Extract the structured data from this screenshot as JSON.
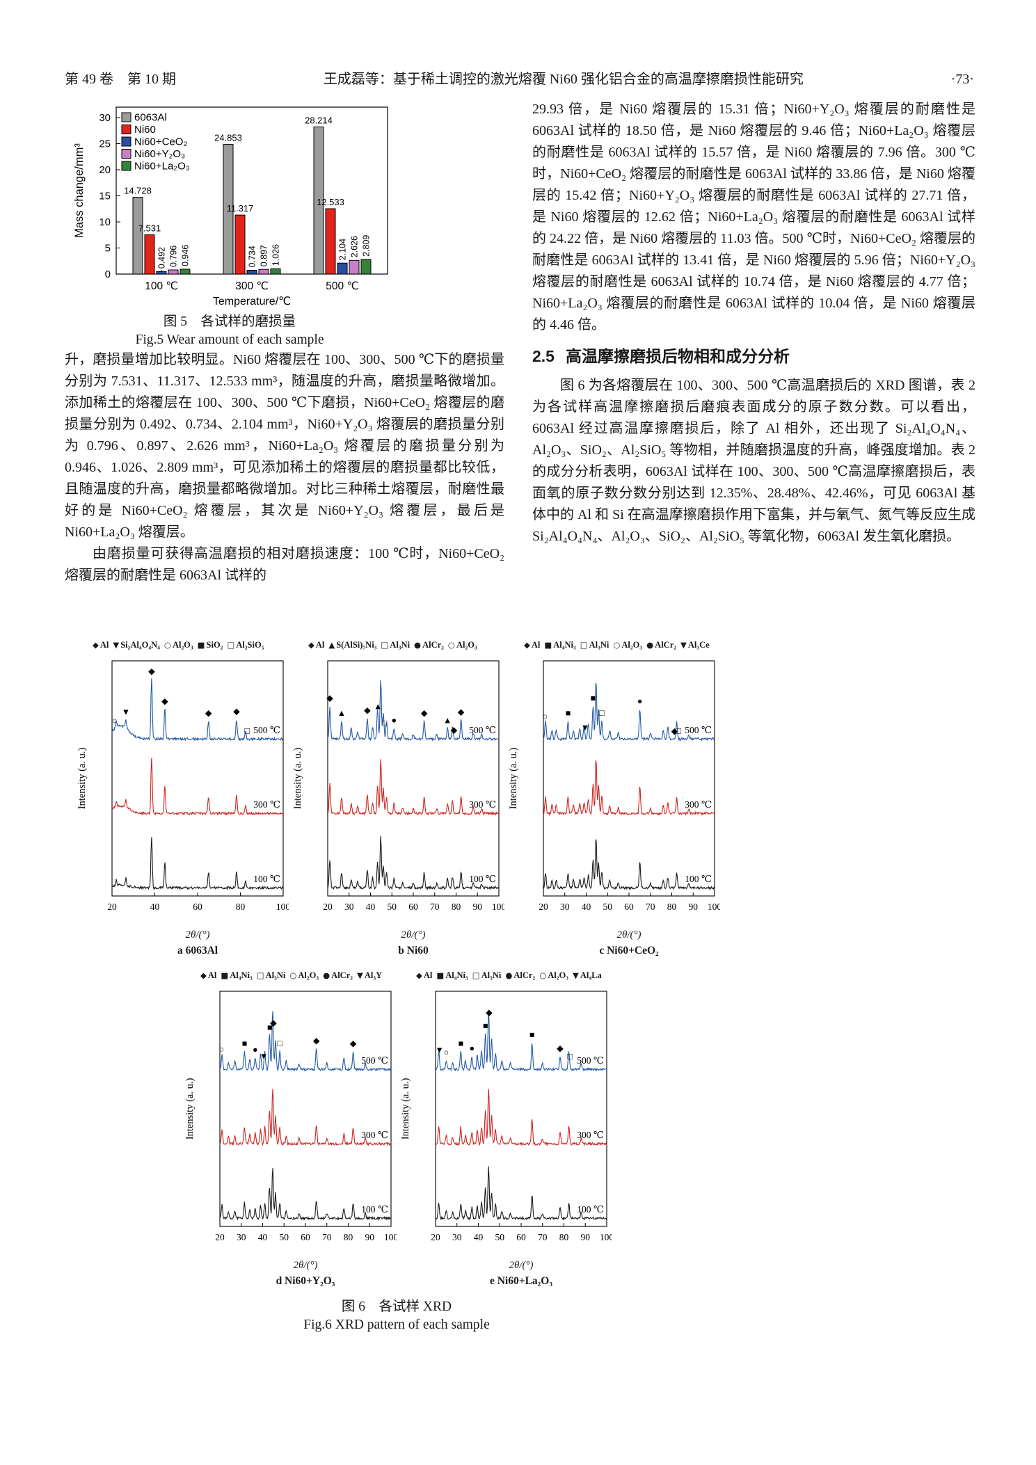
{
  "page": {
    "header_left": "第 49 卷　第 10 期",
    "header_title": "王成磊等：基于稀土调控的激光熔覆 Ni60 强化铝合金的高温摩擦磨损性能研究",
    "header_page": "·73·"
  },
  "fig5": {
    "ylabel": "Mass change/mm³",
    "xlabel": "Temperature/℃",
    "yticks": [
      0,
      5,
      10,
      15,
      20,
      25,
      30
    ],
    "groups": [
      "100 ℃",
      "300 ℃",
      "500 ℃"
    ],
    "series": [
      {
        "name": "6063Al",
        "color": "#9b9b9b",
        "values": [
          14.728,
          24.853,
          28.214
        ],
        "rotated": false
      },
      {
        "name": "Ni60",
        "color": "#e2231a",
        "values": [
          7.531,
          11.317,
          12.533
        ],
        "rotated": false
      },
      {
        "name": "Ni60+CeO₂",
        "color": "#2b4ea2",
        "values": [
          0.492,
          0.734,
          2.104
        ],
        "rotated": true
      },
      {
        "name": "Ni60+Y₂O₃",
        "color": "#c87fc8",
        "values": [
          0.796,
          0.897,
          2.626
        ],
        "rotated": true
      },
      {
        "name": "Ni60+La₂O₃",
        "color": "#35823a",
        "values": [
          0.946,
          1.026,
          2.809
        ],
        "rotated": true
      }
    ],
    "caption_zh": "图 5　各试样的磨损量",
    "caption_en": "Fig.5 Wear amount of each sample"
  },
  "left_column": {
    "paragraphs": [
      "升，磨损量增加比较明显。Ni60 熔覆层在 100、300、500 ℃下的磨损量分别为 7.531、11.317、12.533 mm³，随温度的升高，磨损量略微增加。添加稀土的熔覆层在 100、300、500 ℃下磨损，Ni60+CeO₂ 熔覆层的磨损量分别为 0.492、0.734、2.104 mm³，Ni60+Y₂O₃ 熔覆层的磨损量分别为 0.796、0.897、2.626 mm³，Ni60+La₂O₃ 熔覆层的磨损量分别为 0.946、1.026、2.809 mm³，可见添加稀土的熔覆层的磨损量都比较低，且随温度的升高，磨损量都略微增加。对比三种稀土熔覆层，耐磨性最好的是 Ni60+CeO₂ 熔覆层，其次是 Ni60+Y₂O₃ 熔覆层，最后是 Ni60+La₂O₃ 熔覆层。",
      "由磨损量可获得高温磨损的相对磨损速度：100 ℃时，Ni60+CeO₂ 熔覆层的耐磨性是 6063Al 试样的"
    ]
  },
  "right_column": {
    "paragraph1": "29.93 倍，是 Ni60 熔覆层的 15.31 倍；Ni60+Y₂O₃ 熔覆层的耐磨性是 6063Al 试样的 18.50 倍，是 Ni60 熔覆层的 9.46 倍；Ni60+La₂O₃ 熔覆层的耐磨性是 6063Al 试样的 15.57 倍，是 Ni60 熔覆层的 7.96 倍。300 ℃时，Ni60+CeO₂ 熔覆层的耐磨性是 6063Al 试样的 33.86 倍，是 Ni60 熔覆层的 15.42 倍；Ni60+Y₂O₃ 熔覆层的耐磨性是 6063Al 试样的 27.71 倍，是 Ni60 熔覆层的 12.62 倍；Ni60+La₂O₃ 熔覆层的耐磨性是 6063Al 试样的 24.22 倍，是 Ni60 熔覆层的 11.03 倍。500 ℃时，Ni60+CeO₂ 熔覆层的耐磨性是 6063Al 试样的 13.41 倍，是 Ni60 熔覆层的 5.96 倍；Ni60+Y₂O₃ 熔覆层的耐磨性是 6063Al 试样的 10.74 倍，是 Ni60 熔覆层的 4.77 倍；Ni60+La₂O₃ 熔覆层的耐磨性是 6063Al 试样的 10.04 倍，是 Ni60 熔覆层的 4.46 倍。",
    "section": {
      "number": "2.5",
      "title": "高温摩擦磨损后物相和成分分析"
    },
    "paragraph2": "图 6 为各熔覆层在 100、300、500 ℃高温磨损后的 XRD 图谱，表 2 为各试样高温摩擦磨损后磨痕表面成分的原子数分数。可以看出，6063Al 经过高温摩擦磨损后，除了 Al 相外，还出现了 Si₂Al₄O₄N₄、Al₂O₃、SiO₂、Al₂SiO₅ 等物相，并随磨损温度的升高，峰强度增加。表 2 的成分分析表明，6063Al 试样在 100、300、500 ℃高温摩擦磨损后，表面氧的原子数分数分别达到 12.35%、28.48%、42.46%，可见 6063Al 基体中的 Al 和 Si 在高温摩擦磨损作用下富集，并与氧气、氮气等反应生成 Si₂Al₄O₄N₄、Al₂O₃、SiO₂、Al₂SiO₅ 等氧化物，6063Al 发生氧化磨损。"
  },
  "fig6": {
    "ylabel": "Intensity (a. u.)",
    "xlabel": "2θ/(°)",
    "curve_labels": [
      "100 ℃",
      "300 ℃",
      "500 ℃"
    ],
    "curve_colors": [
      "#1a1a1a",
      "#cf2420",
      "#2458a8"
    ],
    "caption_zh": "图 6　各试样 XRD",
    "caption_en": "Fig.6 XRD pattern of each sample",
    "subplots": [
      {
        "key": "a",
        "label": "a  6063Al",
        "legend": [
          [
            "◆",
            "Al"
          ],
          [
            "▼",
            "Si₂Al₄O₄N₄"
          ],
          [
            "○",
            "Al₂O₃"
          ],
          [
            "■",
            "SiO₂"
          ],
          [
            "□",
            "Al₂SiO₅"
          ]
        ],
        "xticks": [
          20,
          40,
          60,
          80,
          100
        ],
        "peaks": [
          [
            22,
            0.1
          ],
          [
            26.5,
            0.14
          ],
          [
            38.5,
            1.0
          ],
          [
            44.7,
            0.5
          ],
          [
            65.1,
            0.3
          ],
          [
            78.2,
            0.33
          ],
          [
            82.4,
            0.14
          ]
        ],
        "hump": [
          24,
          5.5,
          0.22
        ],
        "markers": [
          [
            "○",
            21.2
          ],
          [
            "▼",
            26.5
          ],
          [
            "◆",
            38.5
          ],
          [
            "◆",
            44.7
          ],
          [
            "◆",
            65.1
          ],
          [
            "◆",
            78.2
          ],
          [
            "□",
            83.2
          ]
        ]
      },
      {
        "key": "b",
        "label": "b  Ni60",
        "legend": [
          [
            "◆",
            "Al"
          ],
          [
            "▲",
            "S(AlSi)₇Ni₃"
          ],
          [
            "□",
            "Al₃Ni"
          ],
          [
            "●",
            "AlCr₂"
          ],
          [
            "○",
            "Al₂O₃"
          ]
        ],
        "xticks": [
          20,
          30,
          40,
          50,
          60,
          70,
          80,
          90,
          100
        ],
        "peaks": [
          [
            21,
            0.55
          ],
          [
            26.5,
            0.3
          ],
          [
            31,
            0.18
          ],
          [
            34,
            0.12
          ],
          [
            38.5,
            0.35
          ],
          [
            41,
            0.2
          ],
          [
            43.3,
            0.5
          ],
          [
            44.8,
            1.0
          ],
          [
            46,
            0.45
          ],
          [
            47.5,
            0.3
          ],
          [
            51,
            0.18
          ],
          [
            55,
            0.1
          ],
          [
            60,
            0.08
          ],
          [
            65.1,
            0.3
          ],
          [
            71,
            0.08
          ],
          [
            76,
            0.18
          ],
          [
            78.3,
            0.22
          ],
          [
            82.3,
            0.32
          ],
          [
            88,
            0.1
          ],
          [
            92,
            0.08
          ]
        ],
        "markers": [
          [
            "◆",
            21
          ],
          [
            "▲",
            26.5
          ],
          [
            "◆",
            38.5
          ],
          [
            "▲",
            43.5
          ],
          [
            "□",
            46.5
          ],
          [
            "●",
            51
          ],
          [
            "◆",
            65.1
          ],
          [
            "▲",
            76
          ],
          [
            "◆",
            79
          ],
          [
            "◆",
            82.3
          ]
        ]
      },
      {
        "key": "c",
        "label": "c  Ni60+CeO₂",
        "legend": [
          [
            "◆",
            "Al"
          ],
          [
            "■",
            "Al₄Ni₃"
          ],
          [
            "□",
            "Al₃Ni"
          ],
          [
            "○",
            "Al₂O₃"
          ],
          [
            "●",
            "AlCr₂"
          ],
          [
            "▼",
            "Al₃Ce"
          ]
        ],
        "xticks": [
          20,
          30,
          40,
          50,
          60,
          70,
          80,
          90,
          100
        ],
        "peaks": [
          [
            21,
            0.3
          ],
          [
            24,
            0.15
          ],
          [
            26,
            0.15
          ],
          [
            31.5,
            0.3
          ],
          [
            34,
            0.15
          ],
          [
            37,
            0.18
          ],
          [
            39,
            0.2
          ],
          [
            41,
            0.25
          ],
          [
            43.2,
            0.55
          ],
          [
            44.6,
            1.0
          ],
          [
            45.8,
            0.5
          ],
          [
            47.3,
            0.3
          ],
          [
            51,
            0.15
          ],
          [
            55,
            0.1
          ],
          [
            65.1,
            0.5
          ],
          [
            70,
            0.1
          ],
          [
            76,
            0.15
          ],
          [
            78.2,
            0.2
          ],
          [
            82.3,
            0.28
          ],
          [
            88,
            0.08
          ]
        ],
        "markers": [
          [
            "○",
            20.8
          ],
          [
            "■",
            31.5
          ],
          [
            "▼",
            39.5
          ],
          [
            "■",
            43.2
          ],
          [
            "□",
            47.3
          ],
          [
            "●",
            65.1
          ],
          [
            "◆",
            81.3
          ],
          [
            "□",
            83.2
          ]
        ]
      },
      {
        "key": "d",
        "label": "d  Ni60+Y₂O₃",
        "legend": [
          [
            "◆",
            "Al"
          ],
          [
            "■",
            "Al₄Ni₃"
          ],
          [
            "□",
            "Al₃Ni"
          ],
          [
            "○",
            "Al₂O₃"
          ],
          [
            "●",
            "AlCr₂"
          ],
          [
            "▼",
            "Al₃Y"
          ]
        ],
        "xticks": [
          20,
          30,
          40,
          50,
          60,
          70,
          80,
          90,
          100
        ],
        "peaks": [
          [
            21,
            0.25
          ],
          [
            24,
            0.12
          ],
          [
            27,
            0.15
          ],
          [
            31.5,
            0.3
          ],
          [
            34,
            0.18
          ],
          [
            36.5,
            0.2
          ],
          [
            39,
            0.25
          ],
          [
            41,
            0.3
          ],
          [
            43.2,
            0.6
          ],
          [
            44.7,
            1.0
          ],
          [
            46,
            0.5
          ],
          [
            48,
            0.3
          ],
          [
            51,
            0.15
          ],
          [
            57,
            0.1
          ],
          [
            65.1,
            0.35
          ],
          [
            70,
            0.1
          ],
          [
            78,
            0.2
          ],
          [
            82.3,
            0.3
          ],
          [
            88,
            0.1
          ]
        ],
        "markers": [
          [
            "○",
            20.8
          ],
          [
            "■",
            31.5
          ],
          [
            "●",
            36.5
          ],
          [
            "▼",
            40.5
          ],
          [
            "■",
            43.3
          ],
          [
            "◆",
            45
          ],
          [
            "□",
            48
          ],
          [
            "◆",
            65.1
          ],
          [
            "◆",
            82.3
          ]
        ]
      },
      {
        "key": "e",
        "label": "e  Ni60+La₂O₃",
        "legend": [
          [
            "◆",
            "Al"
          ],
          [
            "■",
            "Al₄Ni₃"
          ],
          [
            "□",
            "Al₃Ni"
          ],
          [
            "●",
            "AlCr₂"
          ],
          [
            "○",
            "Al₂O₃"
          ],
          [
            "▼",
            "Al₄La"
          ]
        ],
        "xticks": [
          20,
          30,
          40,
          50,
          60,
          70,
          80,
          90,
          100
        ],
        "peaks": [
          [
            21.5,
            0.3
          ],
          [
            25,
            0.15
          ],
          [
            28,
            0.12
          ],
          [
            31.8,
            0.3
          ],
          [
            34,
            0.15
          ],
          [
            37,
            0.22
          ],
          [
            39.5,
            0.25
          ],
          [
            41.5,
            0.3
          ],
          [
            43.3,
            0.6
          ],
          [
            44.8,
            1.0
          ],
          [
            46.2,
            0.5
          ],
          [
            48,
            0.28
          ],
          [
            51,
            0.15
          ],
          [
            55,
            0.1
          ],
          [
            65.1,
            0.45
          ],
          [
            70,
            0.1
          ],
          [
            78.2,
            0.22
          ],
          [
            82.3,
            0.3
          ],
          [
            88,
            0.1
          ]
        ],
        "markers": [
          [
            "▼",
            21.8
          ],
          [
            "○",
            25
          ],
          [
            "■",
            31.8
          ],
          [
            "●",
            37
          ],
          [
            "■",
            43.3
          ],
          [
            "◆",
            45
          ],
          [
            "■",
            65.1
          ],
          [
            "◆",
            78.2
          ],
          [
            "□",
            82.8
          ]
        ]
      }
    ]
  },
  "chart_data": [
    {
      "type": "bar",
      "title": "图5 各试样的磨损量 / Fig.5 Wear amount of each sample",
      "categories": [
        "100 ℃",
        "300 ℃",
        "500 ℃"
      ],
      "series": [
        {
          "name": "6063Al",
          "values": [
            14.728,
            24.853,
            28.214
          ]
        },
        {
          "name": "Ni60",
          "values": [
            7.531,
            11.317,
            12.533
          ]
        },
        {
          "name": "Ni60+CeO₂",
          "values": [
            0.492,
            0.734,
            2.104
          ]
        },
        {
          "name": "Ni60+Y₂O₃",
          "values": [
            0.796,
            0.897,
            2.626
          ]
        },
        {
          "name": "Ni60+La₂O₃",
          "values": [
            0.946,
            1.026,
            2.809
          ]
        }
      ],
      "xlabel": "Temperature/℃",
      "ylabel": "Mass change/mm³",
      "ylim": [
        0,
        30
      ],
      "legend_position": "top-left",
      "grid": false
    },
    {
      "type": "line",
      "title": "图6 各试样 XRD / Fig.6 XRD pattern of each sample",
      "subplots": [
        "a 6063Al",
        "b Ni60",
        "c Ni60+CeO₂",
        "d Ni60+Y₂O₃",
        "e Ni60+La₂O₃"
      ],
      "x_range": [
        20,
        100
      ],
      "xlabel": "2θ/(°)",
      "ylabel": "Intensity (a. u.)",
      "curves_per_subplot": [
        "100 ℃",
        "300 ℃",
        "500 ℃"
      ],
      "note": "Qualitative stacked XRD intensity traces; peak positions approximate, read from figure."
    }
  ]
}
